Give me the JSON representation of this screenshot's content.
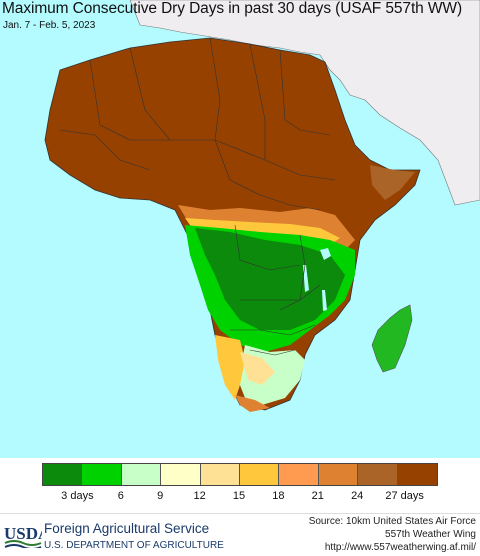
{
  "header": {
    "title": "Maximum Consecutive Dry Days in past 30 days (USAF 557th WW)",
    "date_range": "Jan. 7 - Feb. 5, 2023"
  },
  "map": {
    "region": "Africa",
    "ocean_color": "#b4fbff",
    "land_outside_color": "#f0eef0"
  },
  "legend": {
    "colors": [
      "#0b8a0b",
      "#00d200",
      "#c8ffc8",
      "#ffffc8",
      "#ffe196",
      "#ffc83c",
      "#ff9b50",
      "#de8232",
      "#aa6428",
      "#964100"
    ],
    "tick_labels": [
      "3 days",
      "6",
      "9",
      "12",
      "15",
      "18",
      "21",
      "24",
      "27 days"
    ]
  },
  "footer": {
    "org_logo_text": "USDA",
    "org_name": "Foreign Agricultural Service",
    "dept_name": "U.S. DEPARTMENT OF AGRICULTURE",
    "source_line1": "Source: 10km United States Air Force",
    "source_line2": "557th Weather Wing",
    "source_line3": "http://www.557weatherwing.af.mil/"
  }
}
